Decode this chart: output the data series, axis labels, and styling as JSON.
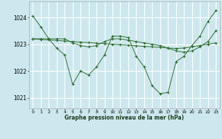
{
  "bg_color": "#cce8ee",
  "grid_color": "#ffffff",
  "line_color": "#2d6a2d",
  "marker_color": "#2d6a2d",
  "xlabel": "Graphe pression niveau de la mer (hPa)",
  "xlabel_color": "#1a3a1a",
  "ylim": [
    1020.6,
    1024.6
  ],
  "yticks": [
    1021,
    1022,
    1023,
    1024
  ],
  "xticks": [
    0,
    1,
    2,
    3,
    4,
    5,
    6,
    7,
    8,
    9,
    10,
    11,
    12,
    13,
    14,
    15,
    16,
    17,
    18,
    19,
    20,
    21,
    22,
    23
  ],
  "series": [
    [
      1024.05,
      1023.65,
      1023.2,
      1023.2,
      1023.2,
      1023.05,
      1022.95,
      1022.9,
      1022.95,
      1023.1,
      1023.2,
      1023.2,
      1023.15,
      1023.1,
      1023.05,
      1023.0,
      1022.95,
      1022.85,
      1022.75,
      1022.7,
      1022.75,
      1022.9,
      1023.1,
      1023.5
    ],
    [
      1023.2,
      1023.2,
      1023.2,
      1022.85,
      1022.6,
      1021.5,
      1022.0,
      1021.85,
      1022.15,
      1022.6,
      1023.3,
      1023.3,
      1023.25,
      1022.55,
      1022.15,
      1021.45,
      1021.15,
      1021.2,
      1022.35,
      1022.55,
      1022.95,
      1023.3,
      1023.85,
      1024.25
    ],
    [
      1023.2,
      1023.18,
      1023.16,
      1023.14,
      1023.12,
      1023.1,
      1023.08,
      1023.06,
      1023.04,
      1023.02,
      1023.0,
      1022.98,
      1022.96,
      1022.94,
      1022.92,
      1022.9,
      1022.88,
      1022.86,
      1022.84,
      1022.86,
      1022.9,
      1022.95,
      1023.0,
      1023.05
    ]
  ]
}
